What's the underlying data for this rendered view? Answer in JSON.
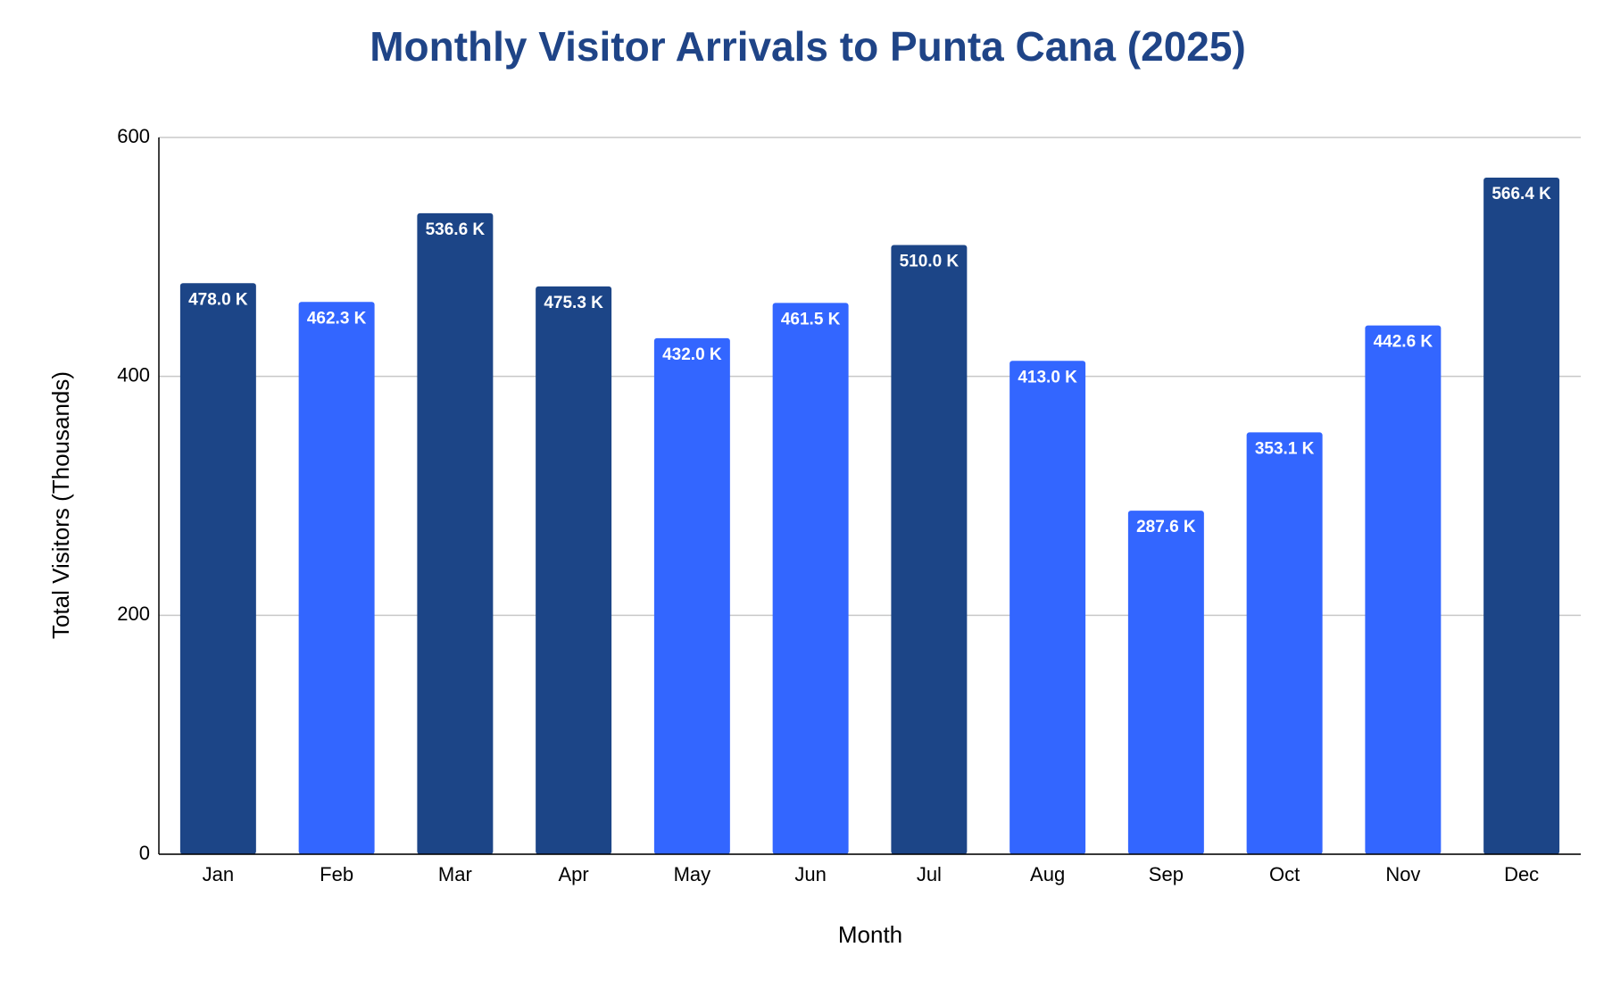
{
  "chart_data": {
    "type": "bar",
    "title": "Monthly Visitor Arrivals to Punta Cana (2025)",
    "x_label": "Month",
    "y_label": "Total Visitors (Thousands)",
    "categories": [
      "Jan",
      "Feb",
      "Mar",
      "Apr",
      "May",
      "Jun",
      "Jul",
      "Aug",
      "Sep",
      "Oct",
      "Nov",
      "Dec"
    ],
    "values": [
      478.0,
      462.3,
      536.6,
      475.3,
      432.0,
      461.5,
      510.0,
      413.0,
      287.6,
      353.1,
      442.6,
      566.4
    ],
    "value_labels": [
      "478.0 K",
      "462.3 K",
      "536.6 K",
      "475.3 K",
      "432.0 K",
      "461.5 K",
      "510.0 K",
      "413.0 K",
      "287.6 K",
      "353.1 K",
      "442.6 K",
      "566.4 K"
    ],
    "colors": [
      "#1c4587",
      "#3366ff",
      "#1c4587",
      "#1c4587",
      "#3366ff",
      "#3366ff",
      "#1c4587",
      "#3366ff",
      "#3366ff",
      "#3366ff",
      "#3366ff",
      "#1c4587"
    ],
    "ylim": [
      0,
      600
    ],
    "yticks": [
      0,
      200,
      400,
      600
    ],
    "grid": true
  }
}
